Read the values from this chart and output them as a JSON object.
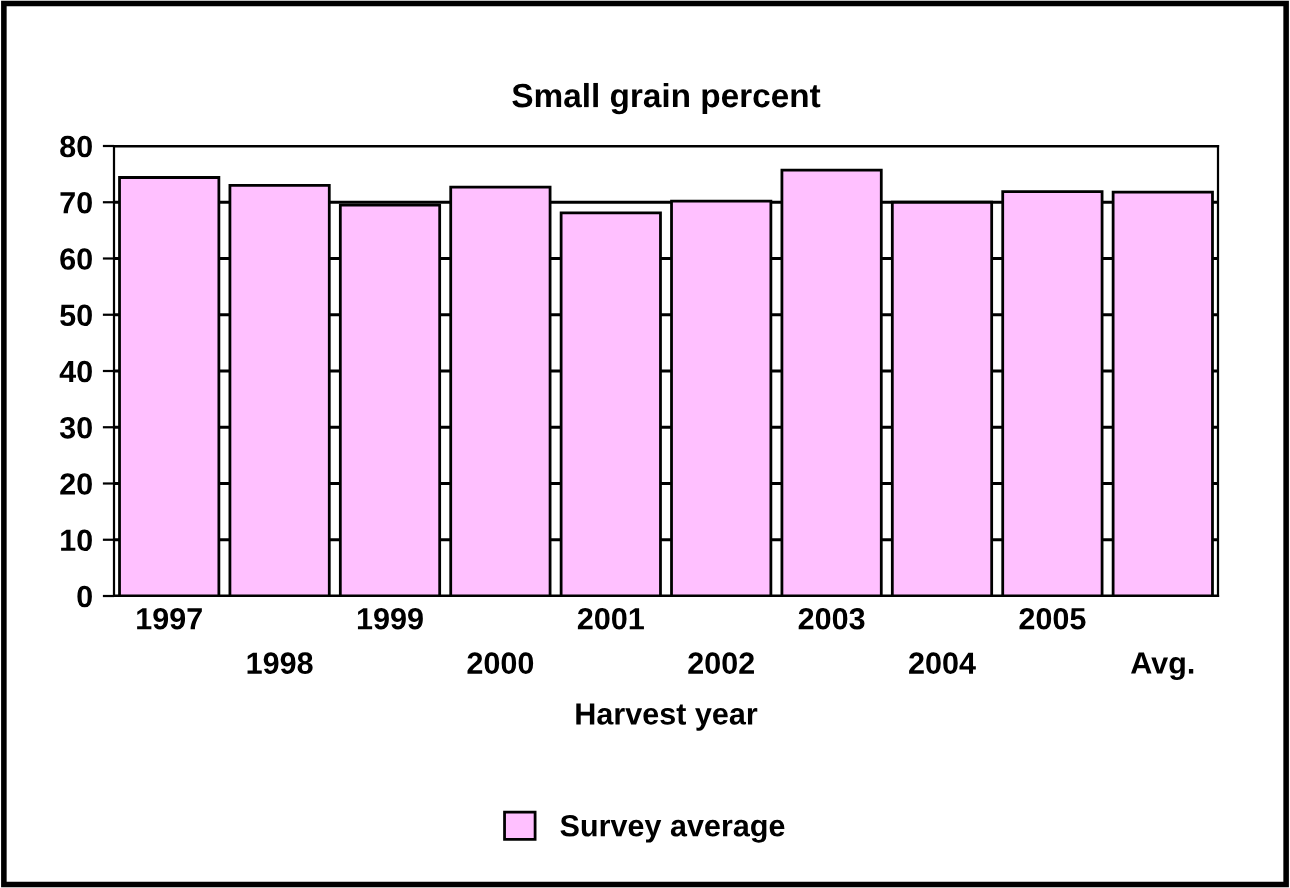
{
  "chart_data": {
    "type": "bar",
    "title": "Small grain percent",
    "xlabel": "Harvest year",
    "categories": [
      "1997",
      "1998",
      "1999",
      "2000",
      "2001",
      "2002",
      "2003",
      "2004",
      "2005",
      "Avg."
    ],
    "series": [
      {
        "name": "Survey average",
        "color": "#ffc0ff",
        "values": [
          74.4,
          73.0,
          69.5,
          72.7,
          68.1,
          70.2,
          75.7,
          70.0,
          71.9,
          71.8
        ]
      }
    ],
    "ylim": [
      0,
      80
    ],
    "yticks": [
      0,
      10,
      20,
      30,
      40,
      50,
      60,
      70,
      80
    ],
    "grid": "y",
    "legend": "bottom"
  }
}
